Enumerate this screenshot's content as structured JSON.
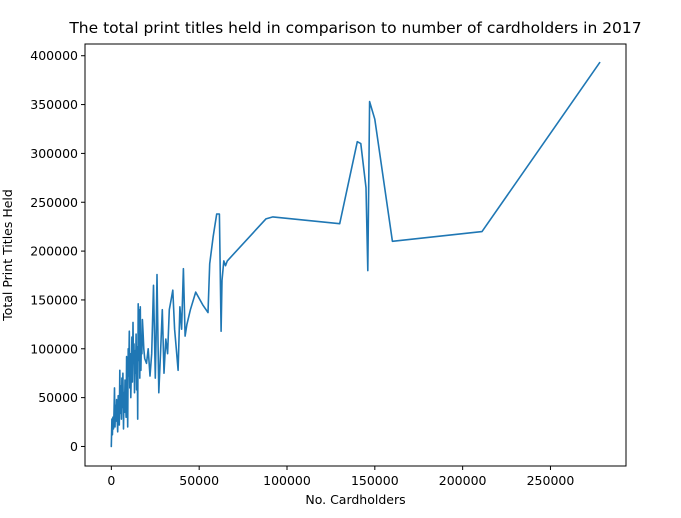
{
  "chart_data": {
    "type": "line",
    "title": "The total print titles held in comparison to number of cardholders in 2017",
    "xlabel": "No. Cardholders",
    "ylabel": "Total Print Titles Held",
    "xlim": [
      -15000,
      293000
    ],
    "ylim": [
      -20000,
      412000
    ],
    "xticks": [
      0,
      50000,
      100000,
      150000,
      200000,
      250000
    ],
    "xtick_labels": [
      "0",
      "50000",
      "100000",
      "150000",
      "200000",
      "250000"
    ],
    "yticks": [
      0,
      50000,
      100000,
      150000,
      200000,
      250000,
      300000,
      350000,
      400000
    ],
    "ytick_labels": [
      "0",
      "50000",
      "100000",
      "150000",
      "200000",
      "250000",
      "300000",
      "350000",
      "400000"
    ],
    "grid": false,
    "color": "#1f77b4",
    "series": [
      {
        "x": [
          0,
          300,
          600,
          900,
          1200,
          1500,
          1800,
          2100,
          2400,
          2700,
          3000,
          3300,
          3600,
          3900,
          4200,
          4500,
          4800,
          5100,
          5400,
          5700,
          6000,
          6300,
          6600,
          6900,
          7200,
          7500,
          7800,
          8100,
          8400,
          8700,
          9000,
          9300,
          9600,
          9900,
          10200,
          10500,
          10800,
          11100,
          11400,
          11700,
          12000,
          12300,
          12600,
          12900,
          13200,
          13500,
          13800,
          14100,
          14400,
          14700,
          15000,
          15300,
          15600,
          15900,
          16200,
          16500,
          16800,
          17100,
          17400,
          17700,
          18000,
          18500,
          19000,
          20000,
          21000,
          22000,
          23000,
          24000,
          25000,
          25500,
          26000,
          27000,
          28000,
          29000,
          30000,
          31000,
          32000,
          33000,
          34000,
          35000,
          36000,
          37000,
          38000,
          39000,
          40000,
          41000,
          42000,
          43000,
          45000,
          48000,
          52000,
          55000,
          56000,
          58000,
          60000,
          61500,
          62500,
          63000,
          64000,
          65000,
          66000,
          88000,
          92000,
          130000,
          140000,
          142000,
          145000,
          146000,
          147000,
          150000,
          160000,
          211000,
          278000
        ],
        "y": [
          0,
          28000,
          12000,
          30000,
          18000,
          35000,
          60000,
          20000,
          42000,
          26000,
          48000,
          30000,
          15000,
          52000,
          38000,
          22000,
          78000,
          34000,
          62000,
          28000,
          70000,
          40000,
          75000,
          18000,
          55000,
          35000,
          68000,
          45000,
          30000,
          92000,
          58000,
          20000,
          100000,
          72000,
          118000,
          60000,
          95000,
          50000,
          82000,
          112000,
          66000,
          127000,
          85000,
          105000,
          55000,
          98000,
          75000,
          115000,
          58000,
          102000,
          28000,
          146000,
          88000,
          140000,
          70000,
          143000,
          78000,
          110000,
          95000,
          130000,
          118000,
          100000,
          90000,
          85000,
          100000,
          72000,
          95000,
          165000,
          70000,
          110000,
          176000,
          55000,
          95000,
          140000,
          75000,
          110000,
          95000,
          140000,
          150000,
          160000,
          120000,
          100000,
          78000,
          143000,
          120000,
          182000,
          113000,
          125000,
          140000,
          158000,
          145000,
          137000,
          187000,
          215000,
          238000,
          238000,
          118000,
          170000,
          190000,
          185000,
          190000,
          233000,
          235000,
          228000,
          312000,
          310000,
          265000,
          180000,
          353000,
          335000,
          210000,
          220000,
          393000
        ]
      }
    ]
  }
}
